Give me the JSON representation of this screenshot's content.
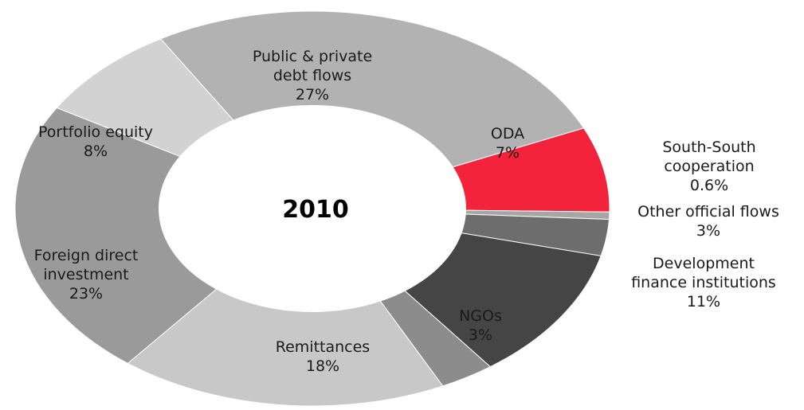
{
  "chart_data": {
    "type": "pie",
    "donut": true,
    "center_text": "2010",
    "slices": [
      {
        "label": [
          "ODA",
          "7%"
        ],
        "value": 7,
        "color": "#f2233a"
      },
      {
        "label": [
          "South-South",
          "cooperation",
          "0.6%"
        ],
        "value": 0.6,
        "color": "#a6a6a6"
      },
      {
        "label": [
          "Other official flows",
          "3%"
        ],
        "value": 3,
        "color": "#6d6d6d"
      },
      {
        "label": [
          "Development",
          "finance institutions",
          "11%"
        ],
        "value": 11,
        "color": "#454545"
      },
      {
        "label": [
          "NGOs",
          "3%"
        ],
        "value": 3,
        "color": "#8c8c8c"
      },
      {
        "label": [
          "Remittances",
          "18%"
        ],
        "value": 18,
        "color": "#c8c8c8"
      },
      {
        "label": [
          "Foreign direct",
          "investment",
          "23%"
        ],
        "value": 23,
        "color": "#9a9a9a"
      },
      {
        "label": [
          "Portfolio equity",
          "8%"
        ],
        "value": 8,
        "color": "#d2d2d2"
      },
      {
        "label": [
          "Public & private",
          "debt flows",
          "27%"
        ],
        "value": 27,
        "color": "#b2b2b2"
      }
    ]
  }
}
